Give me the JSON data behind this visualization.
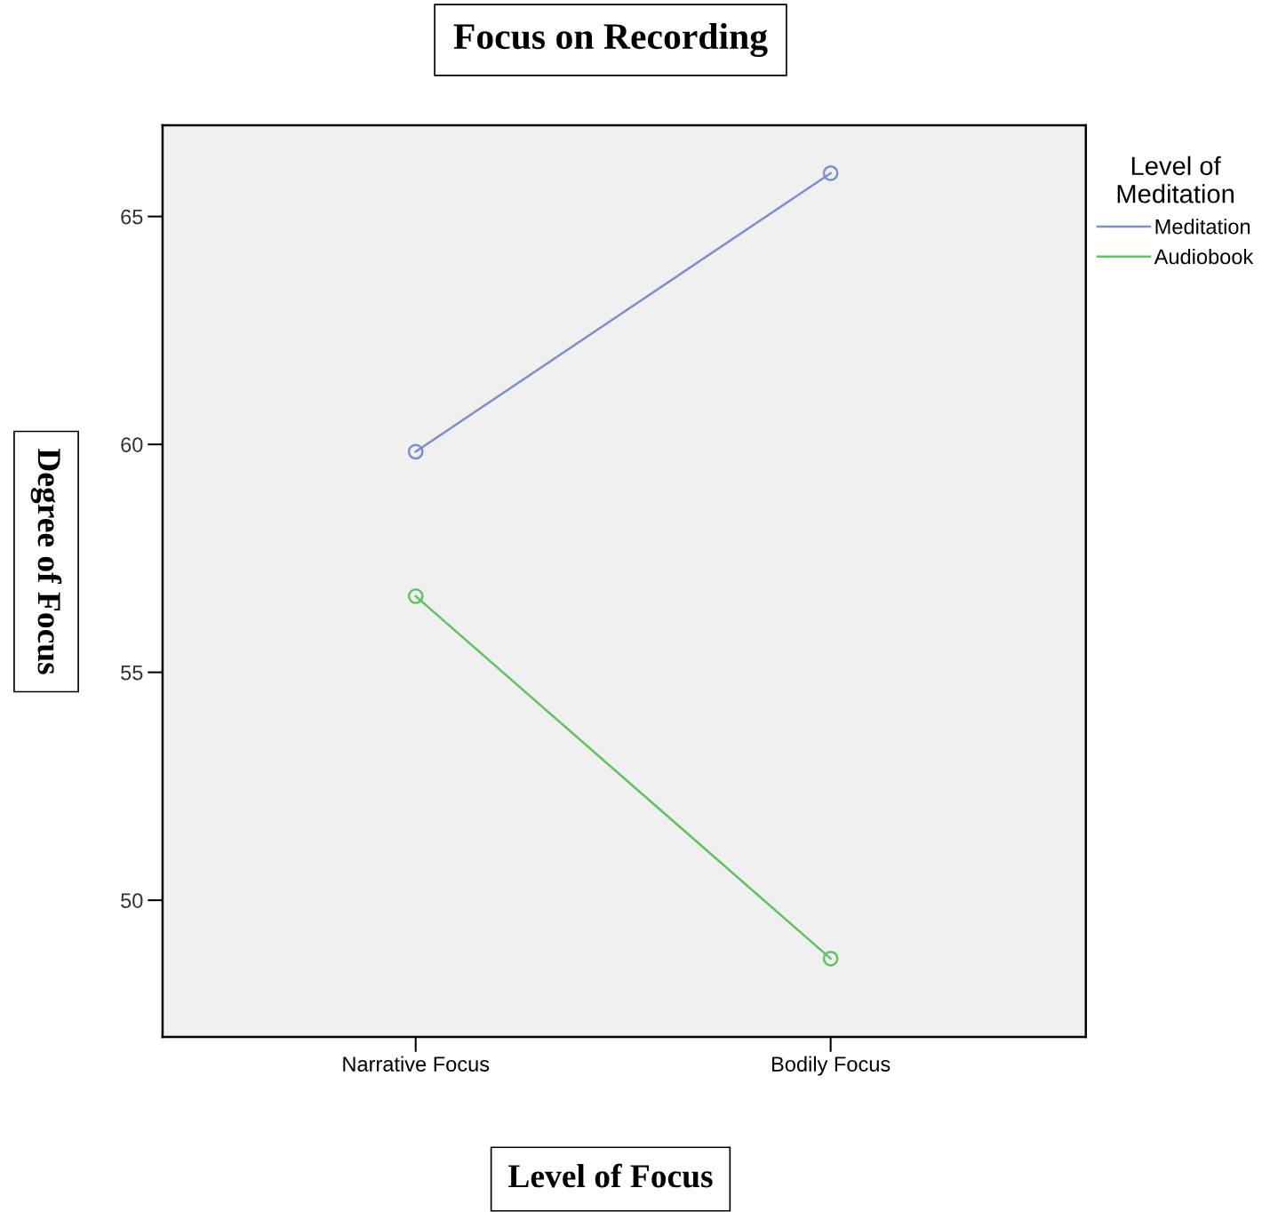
{
  "chart_data": {
    "type": "line",
    "title": "Focus on Recording",
    "xlabel": "Level of Focus",
    "ylabel": "Degree of Focus",
    "legend_title": "Level of\nMeditation",
    "categories": [
      "Narrative Focus",
      "Bodily Focus"
    ],
    "series": [
      {
        "name": "Meditation",
        "color": "#7b8fd0",
        "values": [
          59.84,
          65.95
        ]
      },
      {
        "name": "Audiobook",
        "color": "#5ec45e",
        "values": [
          56.67,
          48.72
        ]
      }
    ],
    "ylim": [
      47,
      67
    ],
    "yticks": [
      50,
      55,
      60,
      65
    ],
    "grid": false,
    "legend": "top right",
    "marker": "circle",
    "line_style": "solid"
  }
}
